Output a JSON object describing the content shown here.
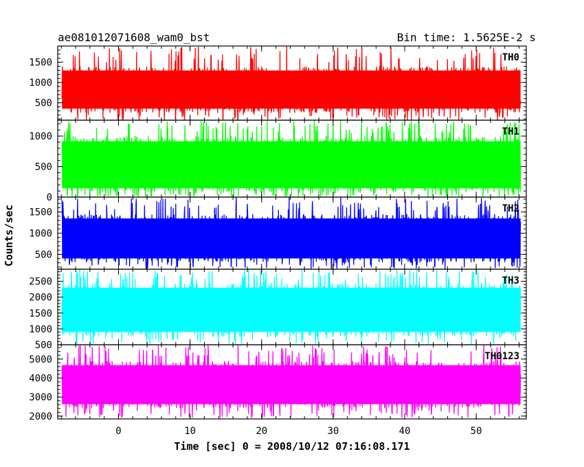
{
  "header": {
    "title": "ae081012071608_wam0_bst",
    "bin_time": "Bin time: 1.5625E-2 s"
  },
  "chart_data": {
    "type": "line",
    "xlabel": "Time [sec] 0 = 2008/10/12 07:16:08.171",
    "ylabel": "Counts/sec",
    "xlim": [
      -8.5,
      57.0
    ],
    "x_ticks": [
      0,
      10,
      20,
      30,
      40,
      50
    ],
    "x_range_data": [
      -7.9,
      56.2
    ],
    "grid": false,
    "panels": [
      {
        "name": "TH0",
        "color": "#ff0000",
        "ylim": [
          70,
          1900
        ],
        "y_ticks": [
          500,
          1000,
          1500
        ],
        "typical_range": [
          250,
          1400
        ],
        "min": 60,
        "max": 1900
      },
      {
        "name": "TH1",
        "color": "#00ff00",
        "ylim": [
          0,
          1260
        ],
        "y_ticks": [
          0,
          500,
          1000
        ],
        "typical_range": [
          60,
          1000
        ],
        "min": 0,
        "max": 1260
      },
      {
        "name": "TH2",
        "color": "#0000ff",
        "ylim": [
          150,
          1850
        ],
        "y_ticks": [
          500,
          1000,
          1500
        ],
        "typical_range": [
          300,
          1450
        ],
        "min": 150,
        "max": 1850
      },
      {
        "name": "TH3",
        "color": "#00ffff",
        "ylim": [
          500,
          2880
        ],
        "y_ticks": [
          500,
          1000,
          1500,
          2000,
          2500
        ],
        "typical_range": [
          750,
          2450
        ],
        "min": 500,
        "max": 2880
      },
      {
        "name": "TH0123",
        "color": "#ff00ff",
        "ylim": [
          1850,
          5750
        ],
        "y_ticks": [
          2000,
          3000,
          4000,
          5000
        ],
        "typical_range": [
          2400,
          4900
        ],
        "min": 1900,
        "max": 5750
      }
    ]
  }
}
